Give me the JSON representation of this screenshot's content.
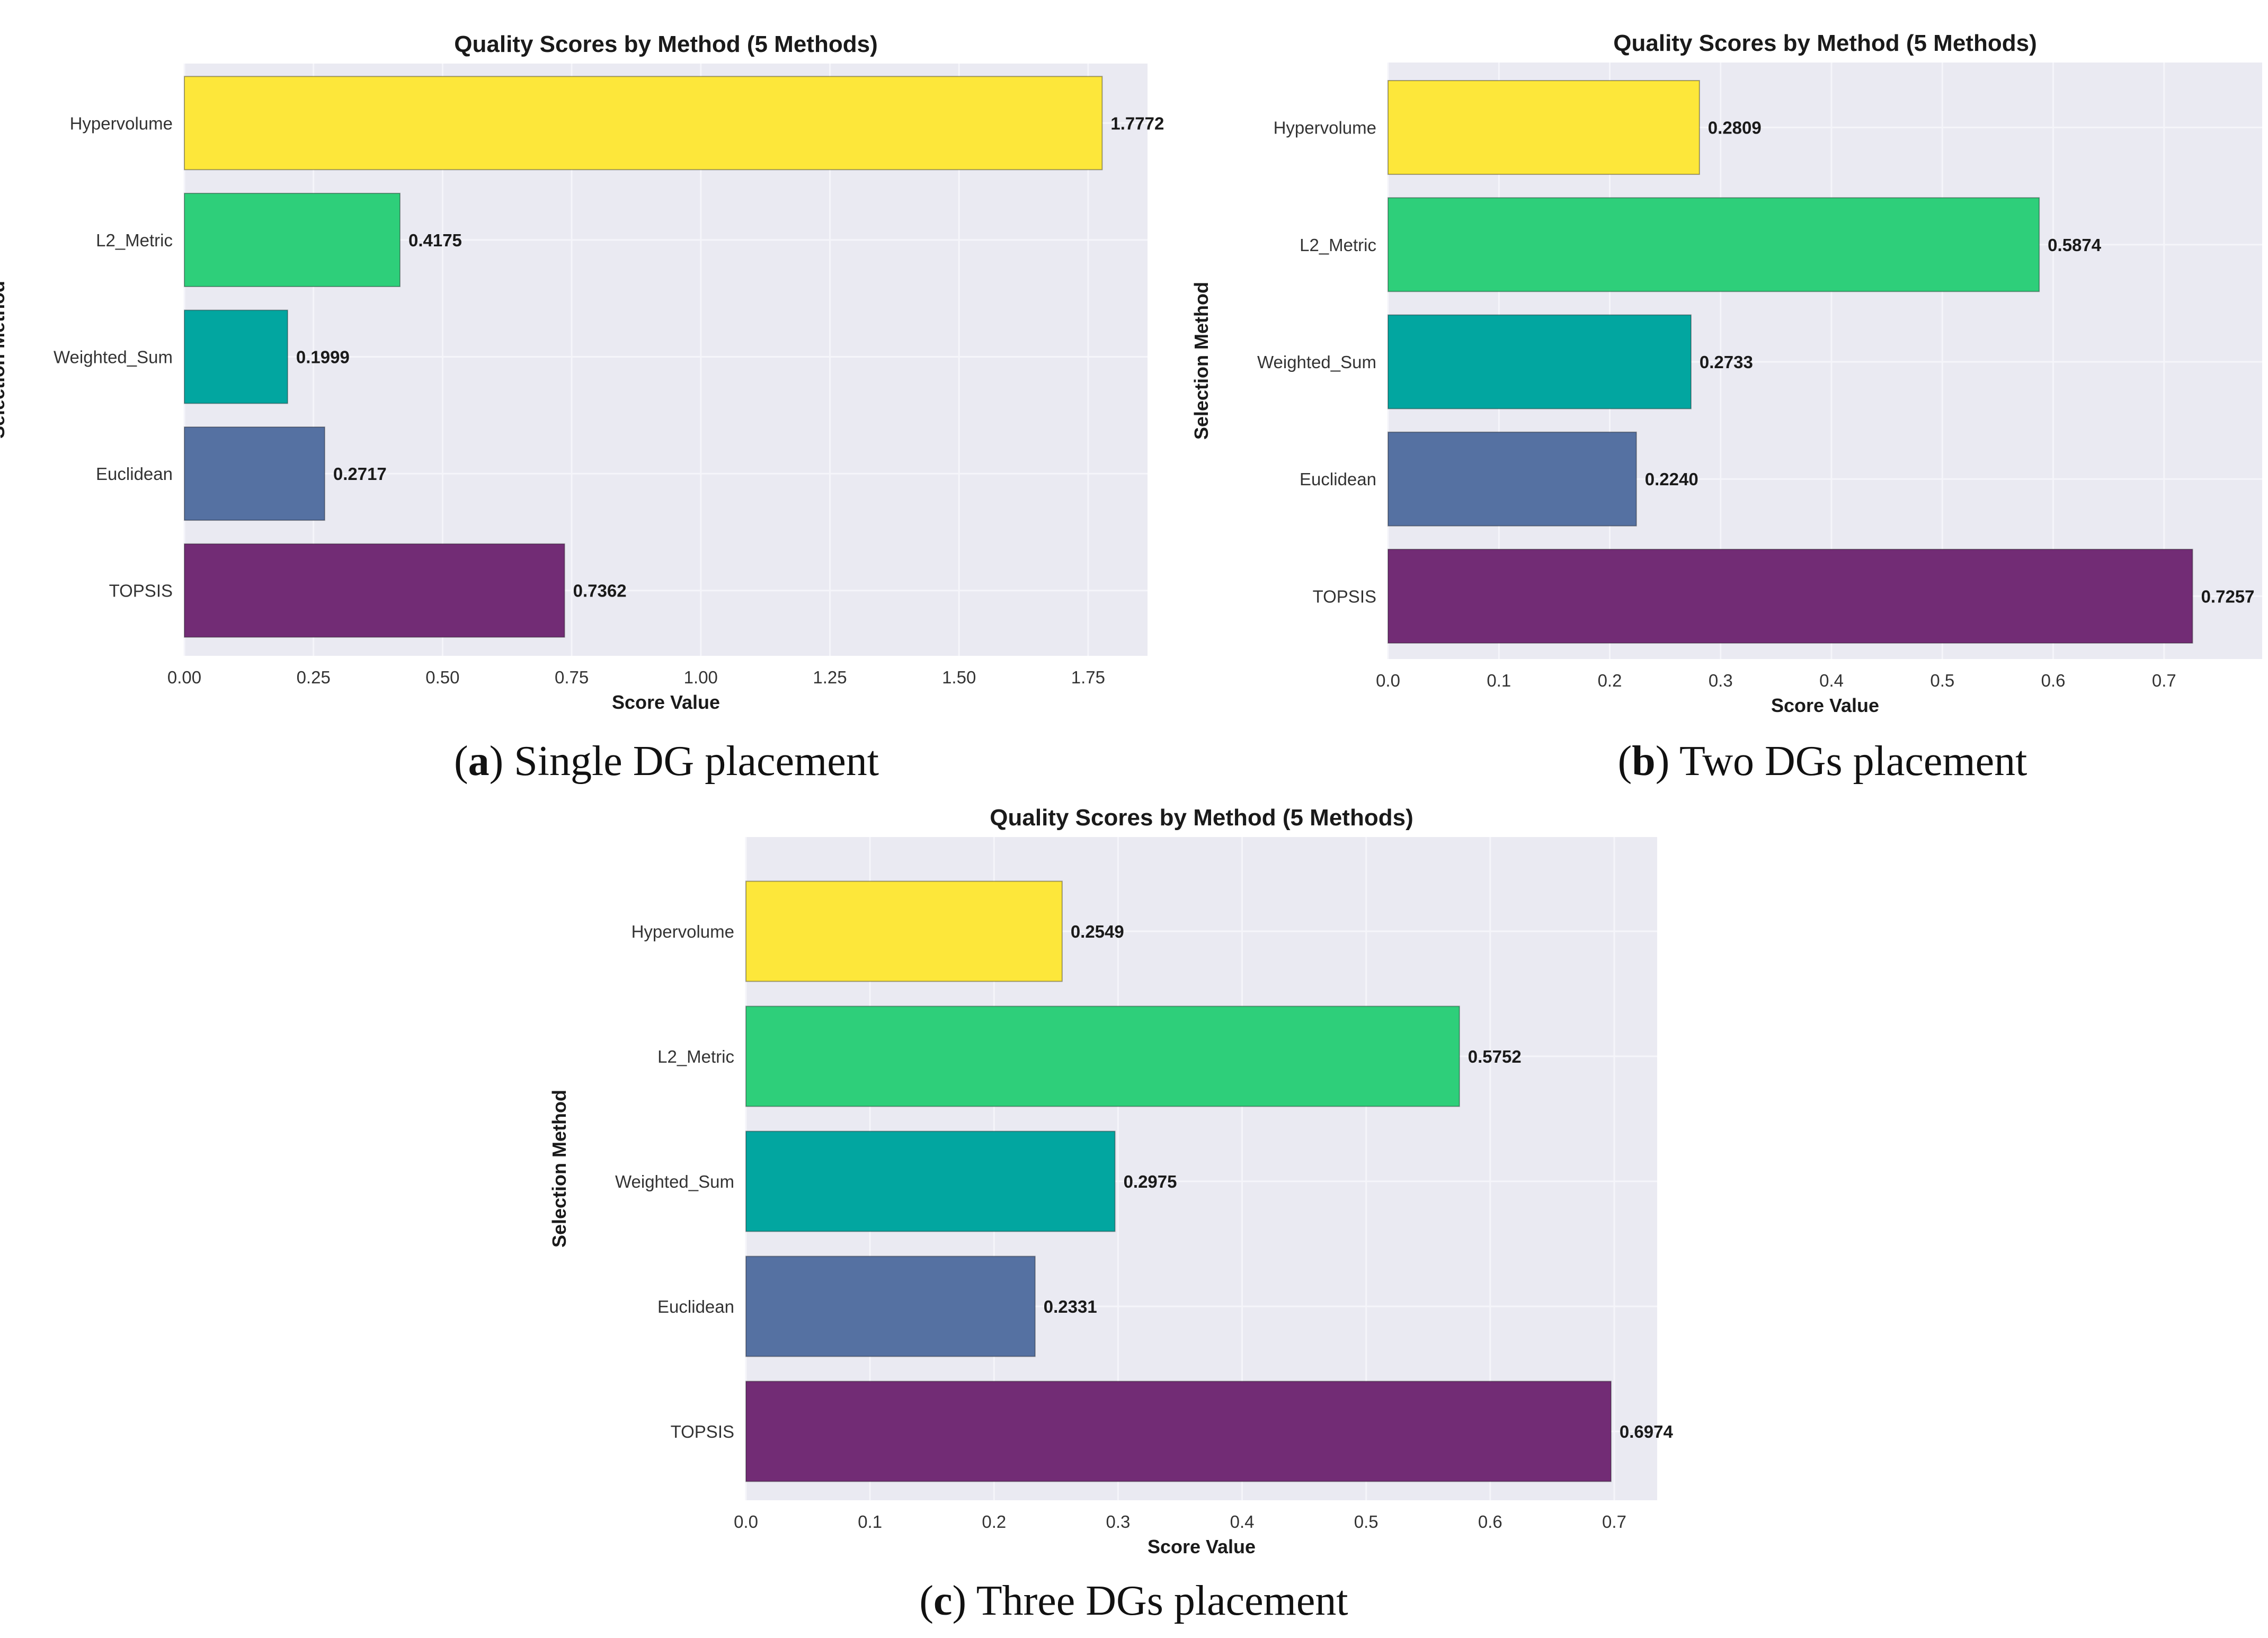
{
  "colors": {
    "plot_bg": "#EAEAF2",
    "grid": "#F5F5FA",
    "Hypervolume": "#FDE73A",
    "L2_Metric": "#2ECF7A",
    "Weighted_Sum": "#02A6A0",
    "Euclidean": "#5571A2",
    "TOPSIS": "#722C75"
  },
  "chart_data": [
    {
      "type": "bar",
      "orientation": "horizontal",
      "title": "Quality Scores by Method (5 Methods)",
      "xlabel": "Score Value",
      "ylabel": "Selection Method",
      "categories": [
        "Hypervolume",
        "L2_Metric",
        "Weighted_Sum",
        "Euclidean",
        "TOPSIS"
      ],
      "values": [
        1.7772,
        0.4175,
        0.1999,
        0.2717,
        0.7362
      ],
      "value_labels": [
        "1.7772",
        "0.4175",
        "0.1999",
        "0.2717",
        "0.7362"
      ],
      "xlim": [
        0,
        1.865
      ],
      "xticks": [
        "0.00",
        "0.25",
        "0.50",
        "0.75",
        "1.00",
        "1.25",
        "1.50",
        "1.75"
      ],
      "grid": true,
      "caption": {
        "letter": "a",
        "text": " Single DG placement"
      }
    },
    {
      "type": "bar",
      "orientation": "horizontal",
      "title": "Quality Scores by Method (5 Methods)",
      "xlabel": "Score Value",
      "ylabel": "Selection Method",
      "categories": [
        "Hypervolume",
        "L2_Metric",
        "Weighted_Sum",
        "Euclidean",
        "TOPSIS"
      ],
      "values": [
        0.2809,
        0.5874,
        0.2733,
        0.224,
        0.7257
      ],
      "value_labels": [
        "0.2809",
        "0.5874",
        "0.2733",
        "0.2240",
        "0.7257"
      ],
      "xlim": [
        0,
        0.7885
      ],
      "xticks": [
        "0.0",
        "0.1",
        "0.2",
        "0.3",
        "0.4",
        "0.5",
        "0.6",
        "0.7"
      ],
      "grid": true,
      "caption": {
        "letter": "b",
        "text": " Two DGs placement"
      }
    },
    {
      "type": "bar",
      "orientation": "horizontal",
      "title": "Quality Scores by Method (5 Methods)",
      "xlabel": "Score Value",
      "ylabel": "Selection Method",
      "categories": [
        "Hypervolume",
        "L2_Metric",
        "Weighted_Sum",
        "Euclidean",
        "TOPSIS"
      ],
      "values": [
        0.2549,
        0.5752,
        0.2975,
        0.2331,
        0.6974
      ],
      "value_labels": [
        "0.2549",
        "0.5752",
        "0.2975",
        "0.2331",
        "0.6974"
      ],
      "xlim": [
        0,
        0.7346
      ],
      "xticks": [
        "0.0",
        "0.1",
        "0.2",
        "0.3",
        "0.4",
        "0.5",
        "0.6",
        "0.7"
      ],
      "grid": true,
      "caption": {
        "letter": "c",
        "text": " Three DGs placement"
      }
    }
  ]
}
